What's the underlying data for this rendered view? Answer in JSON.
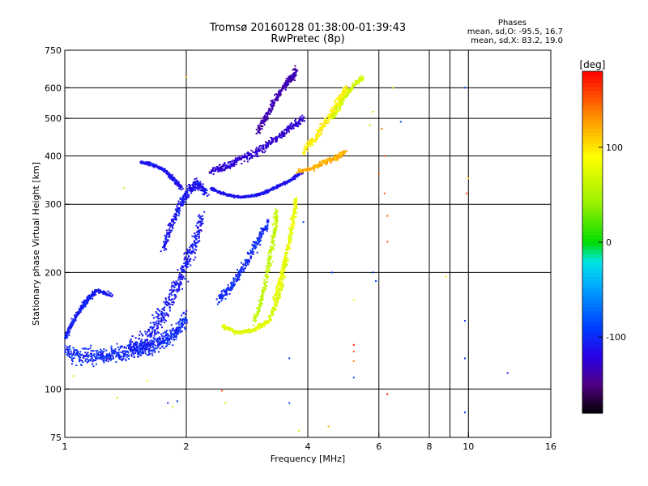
{
  "header": {
    "title_line1": "Tromsø 20160128 01:38:00-01:39:43",
    "title_line2": "RwPretec (8p)"
  },
  "phase_box": {
    "label": "Phases",
    "line_o": "mean, sd,O: -95.5, 16.7",
    "line_x": "mean, sd,X:  83.2, 19.0"
  },
  "colorbar": {
    "unit": "[deg]",
    "ticks": [
      100,
      0,
      -100
    ],
    "tick_labels": [
      "100",
      "0",
      "-100"
    ],
    "range": [
      -180,
      180
    ]
  },
  "chart_data": {
    "type": "scatter",
    "xlabel": "Frequency [MHz]",
    "ylabel": "Stationary phase Virtual Height [km]",
    "xscale": "log",
    "yscale": "log",
    "xlim": [
      1,
      16
    ],
    "ylim": [
      75,
      750
    ],
    "xticks": [
      1,
      2,
      4,
      6,
      8,
      10,
      16
    ],
    "xtick_labels": [
      "1",
      "2",
      "4",
      "6",
      "8",
      "10",
      "16"
    ],
    "yticks": [
      75,
      100,
      200,
      300,
      400,
      500,
      600,
      750
    ],
    "ytick_labels": [
      "75",
      "100",
      "200",
      "300",
      "400",
      "500",
      "600",
      "750"
    ],
    "grid": true,
    "color_by": "phase [deg]",
    "traces": [
      {
        "f": [
          1.0,
          1.1,
          1.2,
          1.3,
          1.4,
          1.5,
          1.6,
          1.7,
          1.8,
          1.9,
          2.0
        ],
        "h": [
          125,
          121,
          121,
          122,
          124,
          126,
          128,
          131,
          135,
          142,
          152
        ],
        "spread": 0.4,
        "phase": -100
      },
      {
        "f": [
          1.0,
          1.05,
          1.1,
          1.15,
          1.2,
          1.3
        ],
        "h": [
          135,
          150,
          162,
          172,
          180,
          175
        ],
        "spread": 0.08,
        "phase": -105
      },
      {
        "f": [
          1.45,
          1.6,
          1.7,
          1.8,
          1.9,
          2.0,
          2.1,
          2.2
        ],
        "h": [
          127,
          135,
          148,
          165,
          185,
          210,
          240,
          280
        ],
        "spread": 0.6,
        "phase": -108
      },
      {
        "f": [
          1.75,
          1.85,
          1.95,
          2.05,
          2.15,
          2.25
        ],
        "h": [
          230,
          270,
          305,
          330,
          340,
          320
        ],
        "spread": 0.25,
        "phase": -110
      },
      {
        "f": [
          1.55,
          1.65,
          1.75,
          1.85,
          1.95
        ],
        "h": [
          385,
          380,
          370,
          350,
          330
        ],
        "spread": 0.08,
        "phase": -112
      },
      {
        "f": [
          2.3,
          2.5,
          2.7,
          2.9,
          3.1,
          3.3,
          3.6,
          3.9
        ],
        "h": [
          330,
          318,
          313,
          315,
          320,
          330,
          345,
          365
        ],
        "spread": 0.05,
        "phase": -112
      },
      {
        "f": [
          2.3,
          2.5,
          2.7,
          3.0,
          3.3,
          3.6,
          3.9
        ],
        "h": [
          365,
          375,
          390,
          410,
          440,
          470,
          500
        ],
        "spread": 0.18,
        "phase": -125
      },
      {
        "f": [
          3.0,
          3.2,
          3.4,
          3.6,
          3.75
        ],
        "h": [
          460,
          520,
          580,
          630,
          660
        ],
        "spread": 0.2,
        "phase": -135
      },
      {
        "f": [
          2.4,
          2.6,
          2.8,
          3.0,
          3.2
        ],
        "h": [
          170,
          185,
          210,
          240,
          270
        ],
        "spread": 0.25,
        "phase": -100
      },
      {
        "f": [
          2.45,
          2.7,
          2.95,
          3.2,
          3.4,
          3.55
        ],
        "h": [
          145,
          140,
          142,
          150,
          175,
          220
        ],
        "spread": 0.1,
        "phase": 75
      },
      {
        "f": [
          2.95,
          3.1,
          3.2,
          3.3,
          3.35
        ],
        "h": [
          150,
          175,
          210,
          250,
          290
        ],
        "spread": 0.15,
        "phase": 60
      },
      {
        "f": [
          3.3,
          3.45,
          3.6,
          3.7,
          3.75
        ],
        "h": [
          170,
          200,
          240,
          280,
          310
        ],
        "spread": 0.1,
        "phase": 80
      },
      {
        "f": [
          3.8,
          4.1,
          4.4,
          4.7,
          4.95
        ],
        "h": [
          365,
          372,
          385,
          395,
          410
        ],
        "spread": 0.1,
        "phase": 120
      },
      {
        "f": [
          3.9,
          4.2,
          4.5,
          4.8,
          5.0
        ],
        "h": [
          410,
          450,
          500,
          560,
          600
        ],
        "spread": 0.2,
        "phase": 95
      },
      {
        "f": [
          4.6,
          4.9,
          5.2,
          5.5
        ],
        "h": [
          500,
          560,
          610,
          640
        ],
        "spread": 0.12,
        "phase": 70
      }
    ],
    "isolated_points": [
      {
        "f": 6.2,
        "h": 400,
        "phase": 150
      },
      {
        "f": 6.2,
        "h": 320,
        "phase": 150
      },
      {
        "f": 6.3,
        "h": 280,
        "phase": 150
      },
      {
        "f": 6.3,
        "h": 240,
        "phase": 150
      },
      {
        "f": 6.1,
        "h": 470,
        "phase": 140
      },
      {
        "f": 6.0,
        "h": 360,
        "phase": 150
      },
      {
        "f": 5.7,
        "h": 480,
        "phase": 40
      },
      {
        "f": 5.8,
        "h": 520,
        "phase": 60
      },
      {
        "f": 6.5,
        "h": 600,
        "phase": 40
      },
      {
        "f": 6.8,
        "h": 490,
        "phase": -90
      },
      {
        "f": 9.8,
        "h": 600,
        "phase": -90
      },
      {
        "f": 10.0,
        "h": 350,
        "phase": 110
      },
      {
        "f": 9.9,
        "h": 320,
        "phase": 150
      },
      {
        "f": 9.8,
        "h": 150,
        "phase": -100
      },
      {
        "f": 9.8,
        "h": 120,
        "phase": -100
      },
      {
        "f": 9.8,
        "h": 87,
        "phase": -100
      },
      {
        "f": 12.5,
        "h": 110,
        "phase": -110
      },
      {
        "f": 8.8,
        "h": 195,
        "phase": 100
      },
      {
        "f": 5.9,
        "h": 190,
        "phase": -90
      },
      {
        "f": 5.8,
        "h": 200,
        "phase": -90
      },
      {
        "f": 5.2,
        "h": 130,
        "phase": 180
      },
      {
        "f": 5.2,
        "h": 125,
        "phase": 150
      },
      {
        "f": 5.2,
        "h": 118,
        "phase": 140
      },
      {
        "f": 5.2,
        "h": 107,
        "phase": -90
      },
      {
        "f": 5.2,
        "h": 170,
        "phase": 80
      },
      {
        "f": 6.3,
        "h": 97,
        "phase": 180
      },
      {
        "f": 4.5,
        "h": 80,
        "phase": 120
      },
      {
        "f": 3.6,
        "h": 120,
        "phase": -90
      },
      {
        "f": 3.6,
        "h": 92,
        "phase": -90
      },
      {
        "f": 3.9,
        "h": 270,
        "phase": -90
      },
      {
        "f": 4.6,
        "h": 200,
        "phase": -90
      },
      {
        "f": 1.8,
        "h": 92,
        "phase": -100
      },
      {
        "f": 1.85,
        "h": 90,
        "phase": 60
      },
      {
        "f": 1.9,
        "h": 93,
        "phase": -100
      },
      {
        "f": 2.5,
        "h": 92,
        "phase": 60
      },
      {
        "f": 2.45,
        "h": 99,
        "phase": 150
      },
      {
        "f": 1.35,
        "h": 95,
        "phase": 60
      },
      {
        "f": 1.6,
        "h": 105,
        "phase": 90
      },
      {
        "f": 1.4,
        "h": 330,
        "phase": 60
      },
      {
        "f": 2.0,
        "h": 640,
        "phase": 120
      },
      {
        "f": 3.8,
        "h": 78,
        "phase": 60
      },
      {
        "f": 1.05,
        "h": 108,
        "phase": 60
      }
    ]
  }
}
